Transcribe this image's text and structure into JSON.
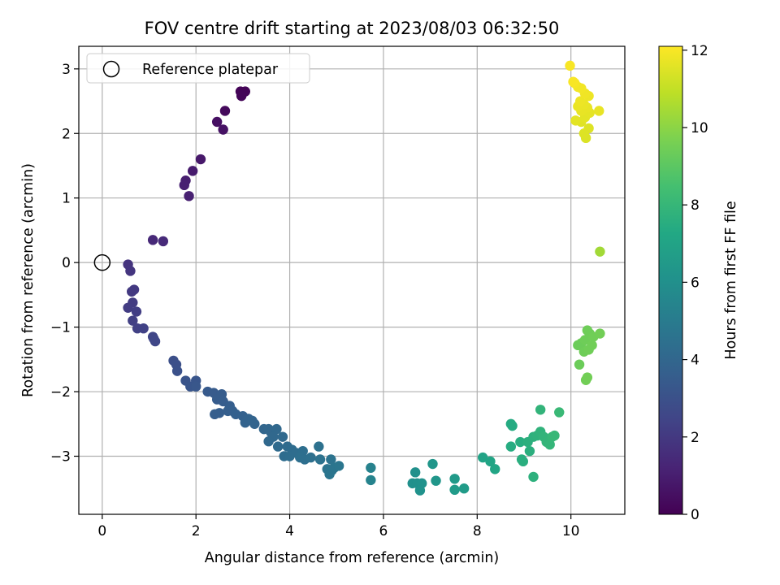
{
  "chart_data": {
    "type": "scatter",
    "title": "FOV centre drift starting at 2023/08/03 06:32:50",
    "xlabel": "Angular distance from reference (arcmin)",
    "ylabel": "Rotation from reference (arcmin)",
    "xlim": [
      -0.5,
      11.15
    ],
    "ylim": [
      -3.9,
      3.35
    ],
    "xticks": [
      0,
      2,
      4,
      6,
      8,
      10
    ],
    "yticks": [
      -3,
      -2,
      -1,
      0,
      1,
      2,
      3
    ],
    "grid": true,
    "legend": {
      "label": "Reference platepar",
      "placement": "top-left",
      "marker": "open circle"
    },
    "reference_point": {
      "x": 0,
      "y": 0
    },
    "colorbar": {
      "label": "Hours from first FF file",
      "colormap": "viridis",
      "min": 0,
      "max": 12.1,
      "ticks": [
        0,
        2,
        4,
        6,
        8,
        10,
        12
      ]
    },
    "points": [
      {
        "x": 2.95,
        "y": 2.65,
        "c": 0.1
      },
      {
        "x": 3.05,
        "y": 2.65,
        "c": 0.1
      },
      {
        "x": 2.97,
        "y": 2.58,
        "c": 0.15
      },
      {
        "x": 2.62,
        "y": 2.35,
        "c": 0.3
      },
      {
        "x": 2.45,
        "y": 2.18,
        "c": 0.5
      },
      {
        "x": 2.58,
        "y": 2.06,
        "c": 0.6
      },
      {
        "x": 2.1,
        "y": 1.6,
        "c": 0.8
      },
      {
        "x": 1.93,
        "y": 1.42,
        "c": 0.9
      },
      {
        "x": 1.78,
        "y": 1.27,
        "c": 1.0
      },
      {
        "x": 1.75,
        "y": 1.2,
        "c": 1.05
      },
      {
        "x": 1.85,
        "y": 1.03,
        "c": 1.1
      },
      {
        "x": 1.08,
        "y": 0.35,
        "c": 1.4
      },
      {
        "x": 1.3,
        "y": 0.33,
        "c": 1.45
      },
      {
        "x": 0.55,
        "y": -0.03,
        "c": 1.8
      },
      {
        "x": 0.6,
        "y": -0.13,
        "c": 1.85
      },
      {
        "x": 0.68,
        "y": -0.42,
        "c": 2.0
      },
      {
        "x": 0.63,
        "y": -0.45,
        "c": 2.0
      },
      {
        "x": 0.65,
        "y": -0.62,
        "c": 2.1
      },
      {
        "x": 0.55,
        "y": -0.7,
        "c": 2.15
      },
      {
        "x": 0.73,
        "y": -0.76,
        "c": 2.2
      },
      {
        "x": 0.65,
        "y": -0.9,
        "c": 2.25
      },
      {
        "x": 0.75,
        "y": -1.02,
        "c": 2.3
      },
      {
        "x": 0.88,
        "y": -1.02,
        "c": 2.35
      },
      {
        "x": 1.08,
        "y": -1.15,
        "c": 2.5
      },
      {
        "x": 1.13,
        "y": -1.22,
        "c": 2.55
      },
      {
        "x": 1.1,
        "y": -1.18,
        "c": 2.5
      },
      {
        "x": 1.52,
        "y": -1.52,
        "c": 2.9
      },
      {
        "x": 1.58,
        "y": -1.58,
        "c": 2.95
      },
      {
        "x": 1.6,
        "y": -1.68,
        "c": 3.0
      },
      {
        "x": 1.78,
        "y": -1.83,
        "c": 3.15
      },
      {
        "x": 1.88,
        "y": -1.92,
        "c": 3.2
      },
      {
        "x": 2.0,
        "y": -1.83,
        "c": 3.2
      },
      {
        "x": 2.0,
        "y": -1.92,
        "c": 3.25
      },
      {
        "x": 2.25,
        "y": -2.0,
        "c": 3.4
      },
      {
        "x": 2.38,
        "y": -2.02,
        "c": 3.45
      },
      {
        "x": 2.45,
        "y": -2.12,
        "c": 3.5
      },
      {
        "x": 2.55,
        "y": -2.04,
        "c": 3.5
      },
      {
        "x": 2.58,
        "y": -2.15,
        "c": 3.55
      },
      {
        "x": 2.72,
        "y": -2.22,
        "c": 3.6
      },
      {
        "x": 2.68,
        "y": -2.3,
        "c": 3.65
      },
      {
        "x": 2.78,
        "y": -2.3,
        "c": 3.65
      },
      {
        "x": 2.5,
        "y": -2.33,
        "c": 3.6
      },
      {
        "x": 2.4,
        "y": -2.35,
        "c": 3.6
      },
      {
        "x": 2.85,
        "y": -2.35,
        "c": 3.7
      },
      {
        "x": 3.0,
        "y": -2.38,
        "c": 3.75
      },
      {
        "x": 3.12,
        "y": -2.42,
        "c": 3.8
      },
      {
        "x": 3.2,
        "y": -2.45,
        "c": 3.85
      },
      {
        "x": 3.05,
        "y": -2.48,
        "c": 3.8
      },
      {
        "x": 3.25,
        "y": -2.5,
        "c": 3.85
      },
      {
        "x": 3.45,
        "y": -2.58,
        "c": 3.95
      },
      {
        "x": 3.55,
        "y": -2.58,
        "c": 4.0
      },
      {
        "x": 3.72,
        "y": -2.58,
        "c": 4.05
      },
      {
        "x": 3.6,
        "y": -2.63,
        "c": 4.0
      },
      {
        "x": 3.65,
        "y": -2.7,
        "c": 4.05
      },
      {
        "x": 3.85,
        "y": -2.7,
        "c": 4.1
      },
      {
        "x": 3.55,
        "y": -2.77,
        "c": 4.05
      },
      {
        "x": 3.75,
        "y": -2.85,
        "c": 4.15
      },
      {
        "x": 3.95,
        "y": -2.85,
        "c": 4.2
      },
      {
        "x": 4.05,
        "y": -2.9,
        "c": 4.25
      },
      {
        "x": 3.88,
        "y": -3.0,
        "c": 4.25
      },
      {
        "x": 4.0,
        "y": -3.0,
        "c": 4.3
      },
      {
        "x": 4.15,
        "y": -2.95,
        "c": 4.3
      },
      {
        "x": 4.28,
        "y": -2.92,
        "c": 4.35
      },
      {
        "x": 4.22,
        "y": -3.02,
        "c": 4.4
      },
      {
        "x": 4.32,
        "y": -3.05,
        "c": 4.4
      },
      {
        "x": 4.45,
        "y": -3.02,
        "c": 4.45
      },
      {
        "x": 4.62,
        "y": -2.85,
        "c": 4.5
      },
      {
        "x": 4.65,
        "y": -3.05,
        "c": 4.55
      },
      {
        "x": 4.88,
        "y": -3.05,
        "c": 4.6
      },
      {
        "x": 4.8,
        "y": -3.2,
        "c": 4.65
      },
      {
        "x": 4.95,
        "y": -3.18,
        "c": 4.7
      },
      {
        "x": 5.05,
        "y": -3.15,
        "c": 4.75
      },
      {
        "x": 4.9,
        "y": -3.22,
        "c": 4.7
      },
      {
        "x": 4.85,
        "y": -3.28,
        "c": 4.7
      },
      {
        "x": 5.73,
        "y": -3.18,
        "c": 5.3
      },
      {
        "x": 5.73,
        "y": -3.37,
        "c": 5.35
      },
      {
        "x": 6.68,
        "y": -3.25,
        "c": 6.0
      },
      {
        "x": 6.62,
        "y": -3.42,
        "c": 6.0
      },
      {
        "x": 6.72,
        "y": -3.42,
        "c": 6.05
      },
      {
        "x": 6.82,
        "y": -3.42,
        "c": 6.1
      },
      {
        "x": 6.78,
        "y": -3.53,
        "c": 6.1
      },
      {
        "x": 7.05,
        "y": -3.12,
        "c": 6.3
      },
      {
        "x": 7.12,
        "y": -3.38,
        "c": 6.3
      },
      {
        "x": 7.52,
        "y": -3.35,
        "c": 6.5
      },
      {
        "x": 7.52,
        "y": -3.52,
        "c": 6.55
      },
      {
        "x": 7.72,
        "y": -3.5,
        "c": 6.6
      },
      {
        "x": 8.12,
        "y": -3.02,
        "c": 7.0
      },
      {
        "x": 8.28,
        "y": -3.08,
        "c": 7.05
      },
      {
        "x": 8.38,
        "y": -3.2,
        "c": 7.1
      },
      {
        "x": 8.72,
        "y": -2.5,
        "c": 7.4
      },
      {
        "x": 8.75,
        "y": -2.53,
        "c": 7.4
      },
      {
        "x": 8.72,
        "y": -2.85,
        "c": 7.45
      },
      {
        "x": 8.92,
        "y": -2.78,
        "c": 7.5
      },
      {
        "x": 8.95,
        "y": -3.05,
        "c": 7.55
      },
      {
        "x": 8.98,
        "y": -3.08,
        "c": 7.55
      },
      {
        "x": 9.12,
        "y": -2.92,
        "c": 7.6
      },
      {
        "x": 9.08,
        "y": -2.78,
        "c": 7.65
      },
      {
        "x": 9.2,
        "y": -2.7,
        "c": 7.7
      },
      {
        "x": 9.28,
        "y": -2.68,
        "c": 7.75
      },
      {
        "x": 9.35,
        "y": -2.62,
        "c": 7.8
      },
      {
        "x": 9.42,
        "y": -2.7,
        "c": 7.85
      },
      {
        "x": 9.48,
        "y": -2.78,
        "c": 7.9
      },
      {
        "x": 9.55,
        "y": -2.82,
        "c": 7.95
      },
      {
        "x": 9.6,
        "y": -2.7,
        "c": 8.0
      },
      {
        "x": 9.65,
        "y": -2.68,
        "c": 8.05
      },
      {
        "x": 9.35,
        "y": -2.28,
        "c": 7.85
      },
      {
        "x": 9.75,
        "y": -2.32,
        "c": 8.1
      },
      {
        "x": 9.2,
        "y": -3.32,
        "c": 7.7
      },
      {
        "x": 10.35,
        "y": -1.05,
        "c": 9.4
      },
      {
        "x": 10.4,
        "y": -1.1,
        "c": 9.4
      },
      {
        "x": 10.62,
        "y": -1.1,
        "c": 9.5
      },
      {
        "x": 10.48,
        "y": -1.15,
        "c": 9.45
      },
      {
        "x": 10.3,
        "y": -1.2,
        "c": 9.4
      },
      {
        "x": 10.22,
        "y": -1.25,
        "c": 9.35
      },
      {
        "x": 10.15,
        "y": -1.28,
        "c": 9.35
      },
      {
        "x": 10.45,
        "y": -1.28,
        "c": 9.45
      },
      {
        "x": 10.38,
        "y": -1.35,
        "c": 9.45
      },
      {
        "x": 10.28,
        "y": -1.38,
        "c": 9.4
      },
      {
        "x": 10.18,
        "y": -1.58,
        "c": 9.35
      },
      {
        "x": 10.35,
        "y": -1.78,
        "c": 9.5
      },
      {
        "x": 10.32,
        "y": -1.82,
        "c": 9.5
      },
      {
        "x": 10.62,
        "y": 0.17,
        "c": 10.4
      },
      {
        "x": 9.98,
        "y": 3.05,
        "c": 12.0
      },
      {
        "x": 10.08,
        "y": 2.78,
        "c": 11.95
      },
      {
        "x": 10.15,
        "y": 2.72,
        "c": 11.9
      },
      {
        "x": 10.22,
        "y": 2.7,
        "c": 11.9
      },
      {
        "x": 10.3,
        "y": 2.62,
        "c": 11.85
      },
      {
        "x": 10.38,
        "y": 2.58,
        "c": 11.8
      },
      {
        "x": 10.2,
        "y": 2.5,
        "c": 11.8
      },
      {
        "x": 10.15,
        "y": 2.42,
        "c": 11.75
      },
      {
        "x": 10.28,
        "y": 2.45,
        "c": 11.75
      },
      {
        "x": 10.35,
        "y": 2.4,
        "c": 11.7
      },
      {
        "x": 10.22,
        "y": 2.35,
        "c": 11.7
      },
      {
        "x": 10.4,
        "y": 2.32,
        "c": 11.65
      },
      {
        "x": 10.6,
        "y": 2.35,
        "c": 11.7
      },
      {
        "x": 10.3,
        "y": 2.25,
        "c": 11.6
      },
      {
        "x": 10.1,
        "y": 2.2,
        "c": 11.6
      },
      {
        "x": 10.22,
        "y": 2.18,
        "c": 11.55
      },
      {
        "x": 10.38,
        "y": 2.08,
        "c": 11.5
      },
      {
        "x": 10.28,
        "y": 2.0,
        "c": 11.5
      },
      {
        "x": 10.32,
        "y": 1.93,
        "c": 11.45
      },
      {
        "x": 10.05,
        "y": 2.8,
        "c": 12.0
      }
    ]
  }
}
